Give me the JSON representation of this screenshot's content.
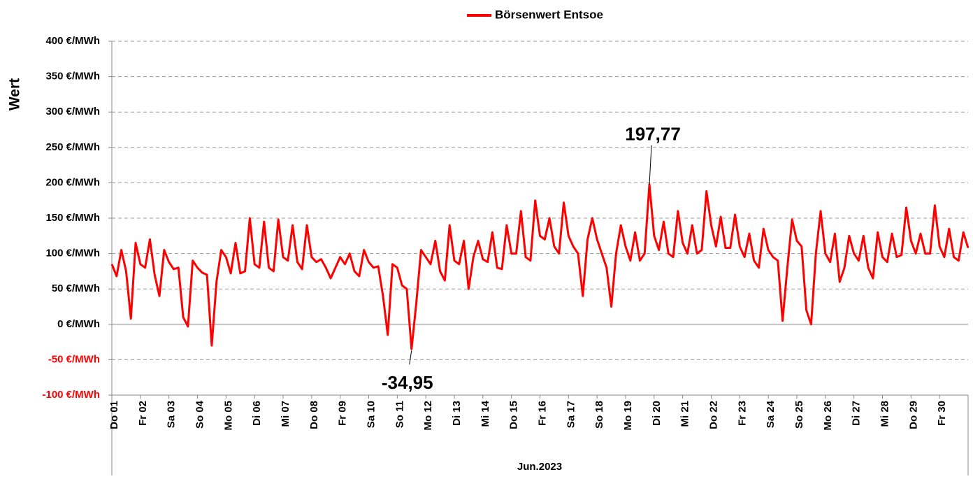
{
  "chart_data": {
    "type": "line",
    "legend": "top",
    "y_label": "Wert",
    "x_group_label": "Jun.2023",
    "negative_tick_color": "#ff0000",
    "grid": true,
    "x": [
      0,
      4,
      8,
      12,
      16,
      20,
      24,
      28,
      32,
      36,
      40,
      44,
      48,
      52,
      56,
      60,
      64,
      68,
      72,
      76,
      80,
      84,
      88,
      92,
      96,
      100,
      104,
      108,
      112,
      116,
      120,
      124,
      128,
      132,
      136,
      140,
      144,
      148,
      152,
      156,
      160,
      164,
      168,
      172,
      176,
      180,
      184,
      188,
      192,
      196,
      200,
      204,
      208,
      212,
      216,
      220,
      224,
      228,
      232,
      236,
      240,
      244,
      248,
      252,
      256,
      260,
      264,
      268,
      272,
      276,
      280,
      284,
      288,
      292,
      296,
      300,
      304,
      308,
      312,
      316,
      320,
      324,
      328,
      332,
      336,
      340,
      344,
      348,
      352,
      356,
      360,
      364,
      368,
      372,
      376,
      380,
      384,
      388,
      392,
      396,
      400,
      404,
      408,
      412,
      416,
      420,
      424,
      428,
      432,
      436,
      440,
      444,
      448,
      452,
      456,
      460,
      464,
      468,
      472,
      476,
      480,
      484,
      488,
      492,
      496,
      500,
      504,
      508,
      512,
      516,
      520,
      524,
      528,
      532,
      536,
      540,
      544,
      548,
      552,
      556,
      560,
      564,
      568,
      572,
      576,
      580,
      584,
      588,
      592,
      596,
      600,
      604,
      608,
      612,
      616,
      620,
      624,
      628,
      632,
      636,
      640,
      644,
      648,
      652,
      656,
      660,
      664,
      668,
      672,
      676,
      680,
      684,
      688,
      692,
      696,
      700,
      704,
      708,
      712,
      716,
      720
    ],
    "xlim": [
      0,
      720
    ],
    "xticks": [
      {
        "value": 0,
        "label": "Do 01"
      },
      {
        "value": 24,
        "label": "Fr 02"
      },
      {
        "value": 48,
        "label": "Sa 03"
      },
      {
        "value": 72,
        "label": "So 04"
      },
      {
        "value": 96,
        "label": "Mo 05"
      },
      {
        "value": 120,
        "label": "Di 06"
      },
      {
        "value": 144,
        "label": "Mi 07"
      },
      {
        "value": 168,
        "label": "Do 08"
      },
      {
        "value": 192,
        "label": "Fr 09"
      },
      {
        "value": 216,
        "label": "Sa 10"
      },
      {
        "value": 240,
        "label": "So 11"
      },
      {
        "value": 264,
        "label": "Mo 12"
      },
      {
        "value": 288,
        "label": "Di 13"
      },
      {
        "value": 312,
        "label": "Mi 14"
      },
      {
        "value": 336,
        "label": "Do 15"
      },
      {
        "value": 360,
        "label": "Fr 16"
      },
      {
        "value": 384,
        "label": "Sa 17"
      },
      {
        "value": 408,
        "label": "So 18"
      },
      {
        "value": 432,
        "label": "Mo 19"
      },
      {
        "value": 456,
        "label": "Di 20"
      },
      {
        "value": 480,
        "label": "Mi 21"
      },
      {
        "value": 504,
        "label": "Do 22"
      },
      {
        "value": 528,
        "label": "Fr 23"
      },
      {
        "value": 552,
        "label": "Sa 24"
      },
      {
        "value": 576,
        "label": "So 25"
      },
      {
        "value": 600,
        "label": "Mo 26"
      },
      {
        "value": 624,
        "label": "Di 27"
      },
      {
        "value": 648,
        "label": "Mi 28"
      },
      {
        "value": 672,
        "label": "Do 29"
      },
      {
        "value": 696,
        "label": "Fr 30"
      }
    ],
    "ylim": [
      -100,
      400
    ],
    "yticks": [
      {
        "value": -100,
        "label": "-100 €/MWh"
      },
      {
        "value": -50,
        "label": "-50 €/MWh"
      },
      {
        "value": 0,
        "label": "0 €/MWh"
      },
      {
        "value": 50,
        "label": "50 €/MWh"
      },
      {
        "value": 100,
        "label": "100 €/MWh"
      },
      {
        "value": 150,
        "label": "150 €/MWh"
      },
      {
        "value": 200,
        "label": "200 €/MWh"
      },
      {
        "value": 250,
        "label": "250 €/MWh"
      },
      {
        "value": 300,
        "label": "300 €/MWh"
      },
      {
        "value": 350,
        "label": "350 €/MWh"
      },
      {
        "value": 400,
        "label": "400 €/MWh"
      }
    ],
    "series": [
      {
        "name": "Börsenwert Entsoe",
        "color": "#ff0000",
        "values": [
          85,
          68,
          105,
          75,
          8,
          115,
          85,
          80,
          120,
          70,
          40,
          105,
          88,
          78,
          80,
          10,
          -3,
          90,
          80,
          73,
          70,
          -30,
          60,
          105,
          95,
          72,
          115,
          72,
          75,
          150,
          85,
          80,
          145,
          80,
          75,
          148,
          95,
          90,
          140,
          88,
          78,
          140,
          95,
          88,
          92,
          80,
          65,
          80,
          95,
          85,
          100,
          75,
          68,
          105,
          88,
          80,
          82,
          40,
          -15,
          85,
          80,
          55,
          50,
          -34.95,
          30,
          105,
          95,
          85,
          118,
          75,
          62,
          140,
          90,
          85,
          118,
          50,
          95,
          118,
          92,
          88,
          130,
          80,
          78,
          140,
          100,
          100,
          160,
          95,
          90,
          175,
          125,
          120,
          150,
          110,
          100,
          172,
          125,
          110,
          100,
          40,
          120,
          150,
          120,
          100,
          80,
          25,
          100,
          140,
          110,
          90,
          130,
          90,
          100,
          197.77,
          125,
          105,
          145,
          100,
          95,
          160,
          115,
          100,
          140,
          100,
          105,
          188,
          140,
          110,
          152,
          108,
          108,
          155,
          110,
          95,
          128,
          90,
          80,
          135,
          105,
          95,
          90,
          5,
          80,
          148,
          118,
          110,
          20,
          0,
          100,
          160,
          100,
          88,
          128,
          60,
          80,
          125,
          100,
          90,
          125,
          80,
          65,
          130,
          95,
          88,
          128,
          95,
          98,
          165,
          118,
          100,
          128,
          100,
          100,
          168,
          110,
          95,
          135,
          95,
          90,
          130,
          108
        ]
      }
    ],
    "annotations": [
      {
        "label": "197,77",
        "x": 452,
        "y": 197.77
      },
      {
        "label": "-34,95",
        "x": 252,
        "y": -34.95
      }
    ]
  }
}
